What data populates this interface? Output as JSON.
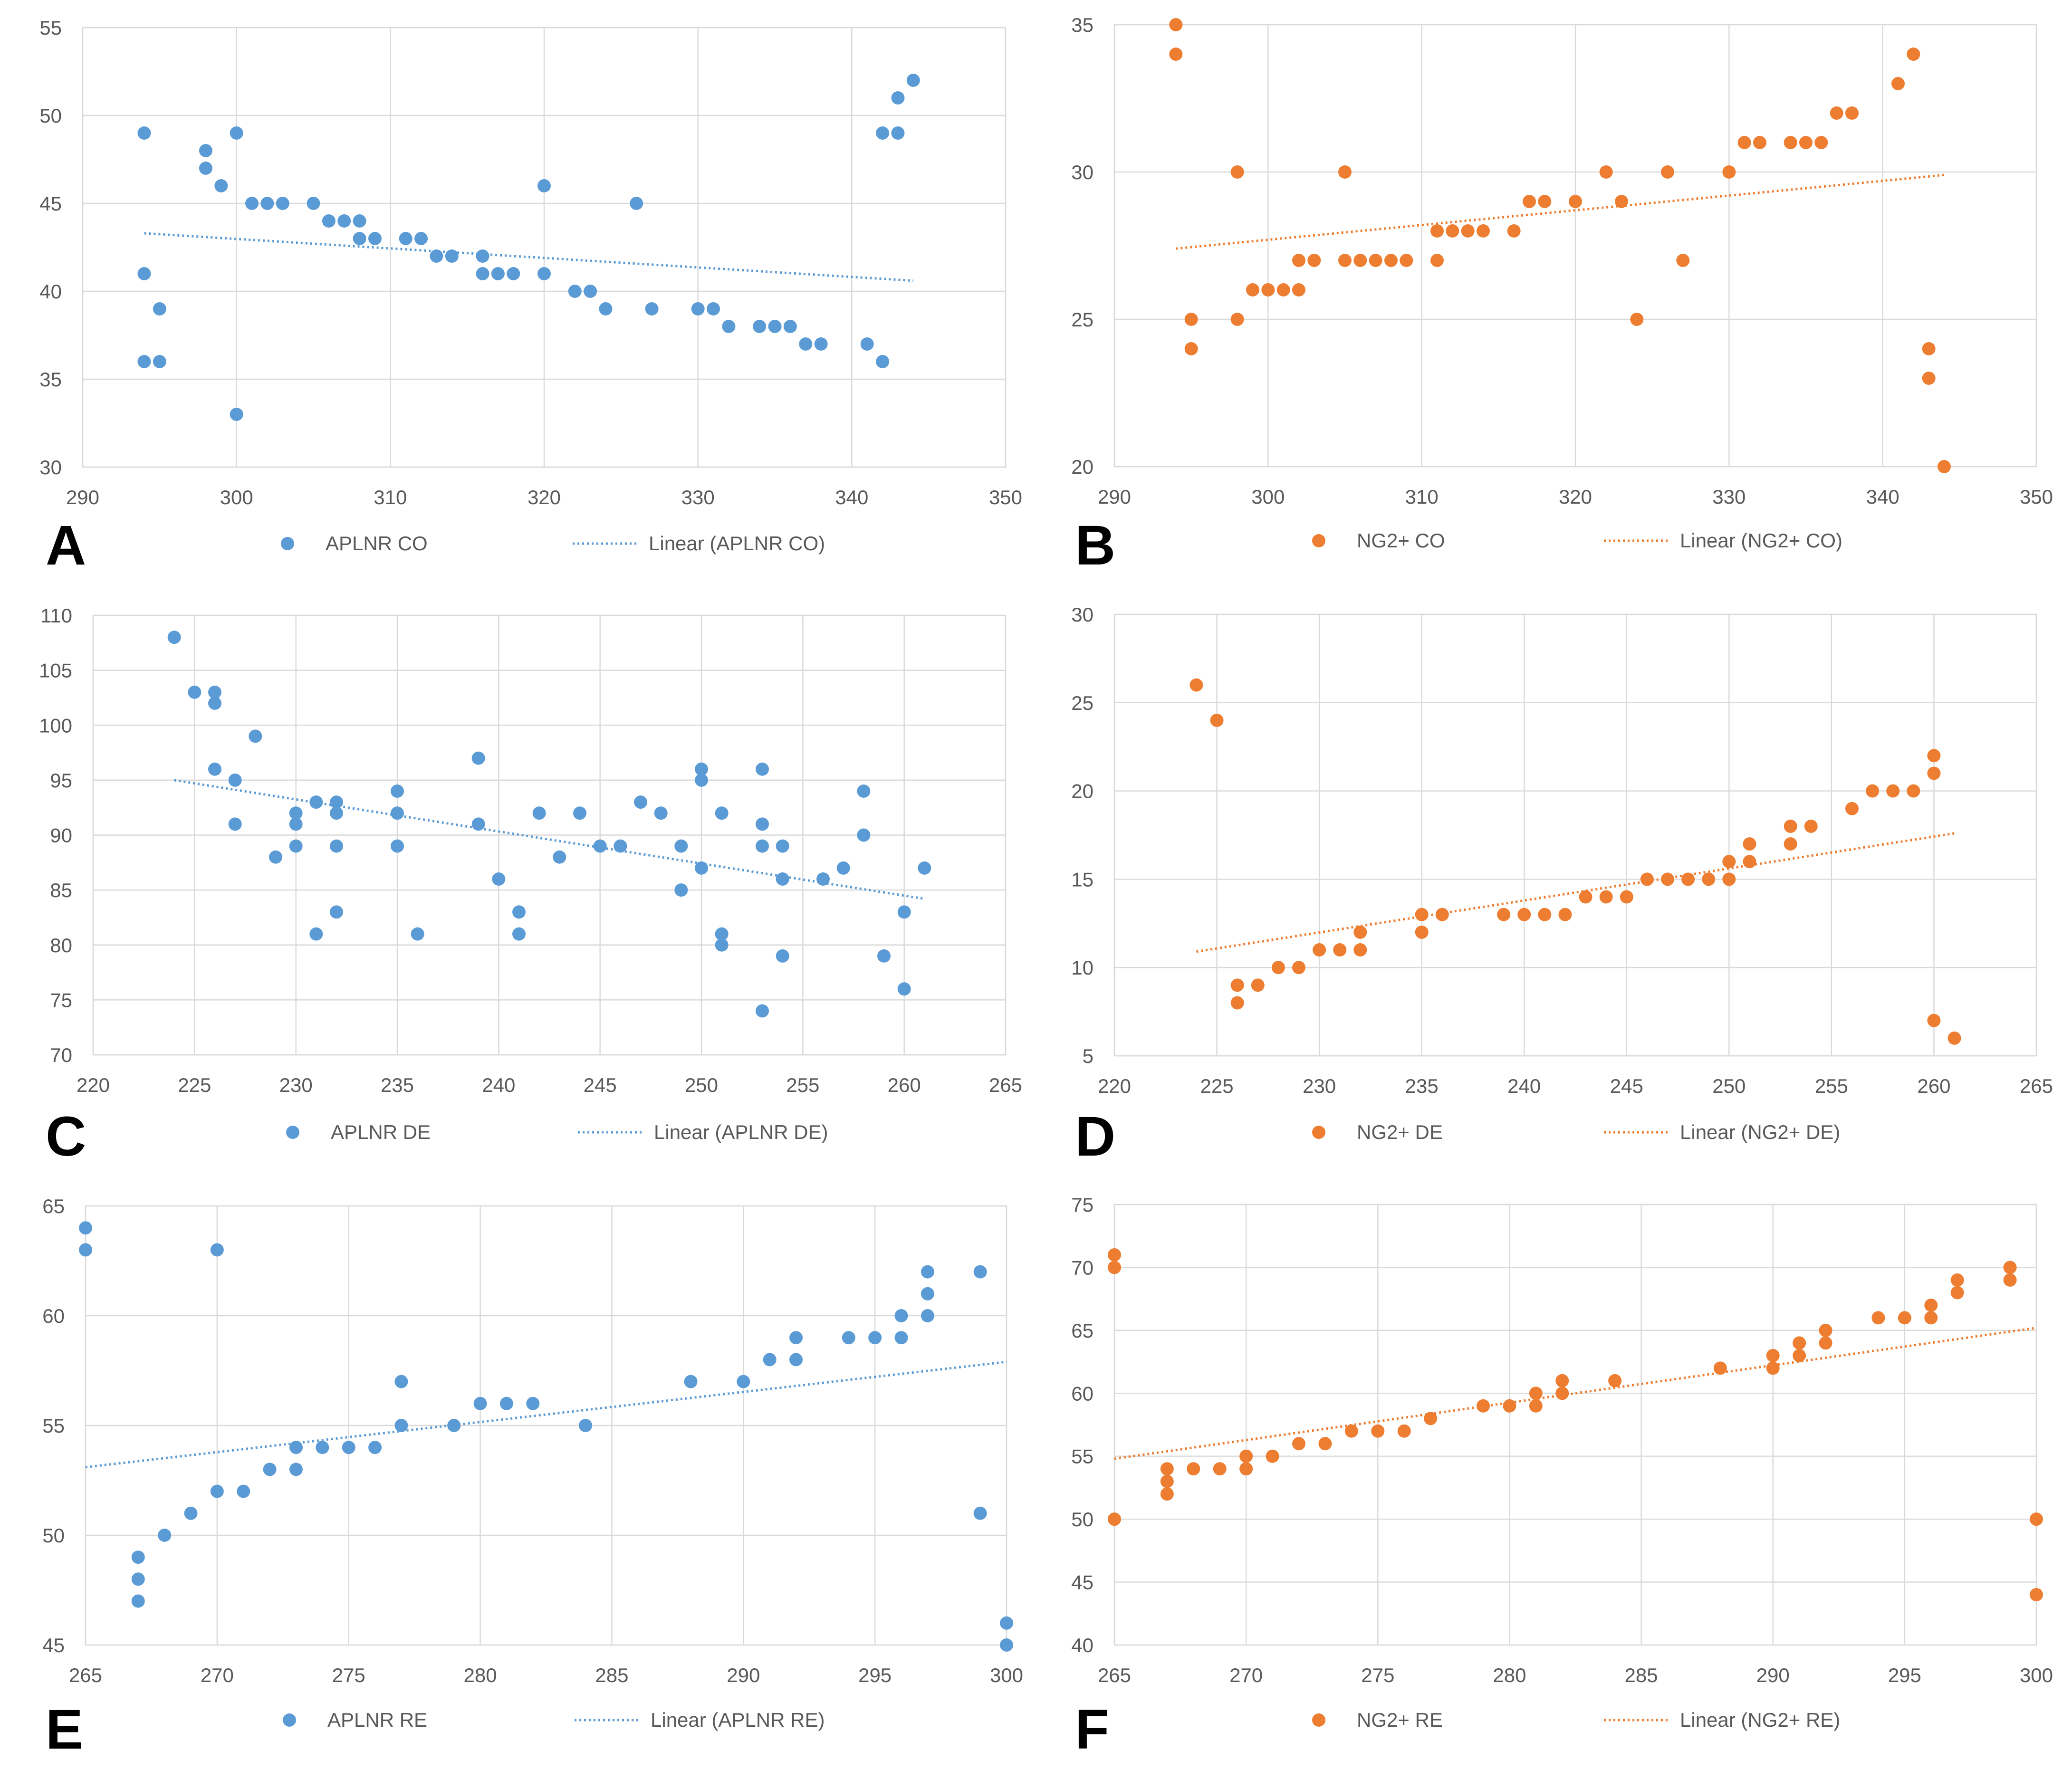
{
  "colors": {
    "blue": "#5b9bd5",
    "orange": "#ed7d31",
    "grid": "#d9d9d9",
    "tick": "#595959"
  },
  "chart_data": [
    {
      "panel": "A",
      "type": "scatter",
      "title": "",
      "xlabel": "",
      "ylabel": "",
      "xlim": [
        290,
        350
      ],
      "ylim": [
        30,
        55
      ],
      "xticks": [
        290,
        300,
        310,
        320,
        330,
        340,
        350
      ],
      "yticks": [
        30,
        35,
        40,
        45,
        50,
        55
      ],
      "color": "#5b9bd5",
      "series_name": "APLNR CO",
      "trend_name": "Linear (APLNR CO)",
      "trend": {
        "x": [
          294,
          344
        ],
        "y": [
          43.3,
          40.6
        ]
      },
      "points": [
        [
          294,
          49
        ],
        [
          294,
          41
        ],
        [
          294,
          36
        ],
        [
          295,
          39
        ],
        [
          295,
          36
        ],
        [
          298,
          48
        ],
        [
          298,
          47
        ],
        [
          299,
          46
        ],
        [
          300,
          49
        ],
        [
          300,
          33
        ],
        [
          301,
          45
        ],
        [
          302,
          45
        ],
        [
          303,
          45
        ],
        [
          305,
          45
        ],
        [
          306,
          44
        ],
        [
          307,
          44
        ],
        [
          308,
          44
        ],
        [
          308,
          43
        ],
        [
          309,
          43
        ],
        [
          311,
          43
        ],
        [
          312,
          43
        ],
        [
          313,
          42
        ],
        [
          314,
          42
        ],
        [
          316,
          42
        ],
        [
          316,
          41
        ],
        [
          317,
          41
        ],
        [
          318,
          41
        ],
        [
          320,
          46
        ],
        [
          320,
          41
        ],
        [
          322,
          40
        ],
        [
          323,
          40
        ],
        [
          324,
          39
        ],
        [
          326,
          45
        ],
        [
          327,
          39
        ],
        [
          330,
          39
        ],
        [
          331,
          39
        ],
        [
          332,
          38
        ],
        [
          334,
          38
        ],
        [
          335,
          38
        ],
        [
          336,
          38
        ],
        [
          337,
          37
        ],
        [
          338,
          37
        ],
        [
          341,
          37
        ],
        [
          342,
          49
        ],
        [
          342,
          36
        ],
        [
          343,
          51
        ],
        [
          343,
          49
        ],
        [
          344,
          52
        ]
      ]
    },
    {
      "panel": "B",
      "type": "scatter",
      "title": "",
      "xlabel": "",
      "ylabel": "",
      "xlim": [
        290,
        350
      ],
      "ylim": [
        20,
        35
      ],
      "xticks": [
        290,
        300,
        310,
        320,
        330,
        340,
        350
      ],
      "yticks": [
        20,
        25,
        30,
        35
      ],
      "color": "#ed7d31",
      "series_name": "NG2+ CO",
      "trend_name": "Linear (NG2+ CO)",
      "trend": {
        "x": [
          294,
          344
        ],
        "y": [
          27.4,
          29.9
        ]
      },
      "points": [
        [
          294,
          35
        ],
        [
          294,
          34
        ],
        [
          295,
          25
        ],
        [
          295,
          24
        ],
        [
          298,
          30
        ],
        [
          298,
          25
        ],
        [
          299,
          26
        ],
        [
          300,
          26
        ],
        [
          301,
          26
        ],
        [
          302,
          26
        ],
        [
          302,
          27
        ],
        [
          303,
          27
        ],
        [
          305,
          30
        ],
        [
          305,
          27
        ],
        [
          306,
          27
        ],
        [
          307,
          27
        ],
        [
          308,
          27
        ],
        [
          309,
          27
        ],
        [
          311,
          28
        ],
        [
          311,
          27
        ],
        [
          312,
          28
        ],
        [
          313,
          28
        ],
        [
          314,
          28
        ],
        [
          316,
          28
        ],
        [
          317,
          29
        ],
        [
          318,
          29
        ],
        [
          320,
          29
        ],
        [
          322,
          30
        ],
        [
          323,
          29
        ],
        [
          324,
          25
        ],
        [
          326,
          30
        ],
        [
          327,
          27
        ],
        [
          330,
          30
        ],
        [
          331,
          31
        ],
        [
          332,
          31
        ],
        [
          334,
          31
        ],
        [
          335,
          31
        ],
        [
          336,
          31
        ],
        [
          337,
          32
        ],
        [
          338,
          32
        ],
        [
          341,
          33
        ],
        [
          342,
          34
        ],
        [
          343,
          24
        ],
        [
          343,
          23
        ],
        [
          344,
          20
        ]
      ]
    },
    {
      "panel": "C",
      "type": "scatter",
      "title": "",
      "xlabel": "",
      "ylabel": "",
      "xlim": [
        220,
        265
      ],
      "ylim": [
        70,
        110
      ],
      "xticks": [
        220,
        225,
        230,
        235,
        240,
        245,
        250,
        255,
        260,
        265
      ],
      "yticks": [
        70,
        75,
        80,
        85,
        90,
        95,
        100,
        105,
        110
      ],
      "color": "#5b9bd5",
      "series_name": "APLNR DE",
      "trend_name": "Linear (APLNR DE)",
      "trend": {
        "x": [
          224,
          261
        ],
        "y": [
          95,
          84.2
        ]
      },
      "points": [
        [
          224,
          108
        ],
        [
          225,
          103
        ],
        [
          226,
          103
        ],
        [
          226,
          102
        ],
        [
          226,
          96
        ],
        [
          227,
          95
        ],
        [
          227,
          91
        ],
        [
          228,
          99
        ],
        [
          229,
          88
        ],
        [
          230,
          92
        ],
        [
          230,
          91
        ],
        [
          230,
          89
        ],
        [
          231,
          93
        ],
        [
          231,
          81
        ],
        [
          232,
          93
        ],
        [
          232,
          92
        ],
        [
          232,
          89
        ],
        [
          232,
          83
        ],
        [
          235,
          94
        ],
        [
          235,
          92
        ],
        [
          235,
          89
        ],
        [
          236,
          81
        ],
        [
          239,
          97
        ],
        [
          239,
          91
        ],
        [
          240,
          86
        ],
        [
          241,
          83
        ],
        [
          241,
          81
        ],
        [
          242,
          92
        ],
        [
          243,
          88
        ],
        [
          244,
          92
        ],
        [
          245,
          89
        ],
        [
          246,
          89
        ],
        [
          247,
          93
        ],
        [
          248,
          92
        ],
        [
          249,
          89
        ],
        [
          249,
          85
        ],
        [
          250,
          96
        ],
        [
          250,
          95
        ],
        [
          250,
          87
        ],
        [
          251,
          92
        ],
        [
          251,
          81
        ],
        [
          251,
          80
        ],
        [
          253,
          96
        ],
        [
          253,
          91
        ],
        [
          253,
          89
        ],
        [
          253,
          74
        ],
        [
          254,
          89
        ],
        [
          254,
          86
        ],
        [
          254,
          79
        ],
        [
          256,
          86
        ],
        [
          257,
          87
        ],
        [
          258,
          94
        ],
        [
          258,
          90
        ],
        [
          259,
          79
        ],
        [
          260,
          83
        ],
        [
          260,
          76
        ],
        [
          261,
          87
        ]
      ]
    },
    {
      "panel": "D",
      "type": "scatter",
      "title": "",
      "xlabel": "",
      "ylabel": "",
      "xlim": [
        220,
        265
      ],
      "ylim": [
        5,
        30
      ],
      "xticks": [
        220,
        225,
        230,
        235,
        240,
        245,
        250,
        255,
        260,
        265
      ],
      "yticks": [
        5,
        10,
        15,
        20,
        25,
        30
      ],
      "color": "#ed7d31",
      "series_name": "NG2+ DE",
      "trend_name": "Linear (NG2+ DE)",
      "trend": {
        "x": [
          224,
          261
        ],
        "y": [
          10.9,
          17.6
        ]
      },
      "points": [
        [
          224,
          26
        ],
        [
          225,
          24
        ],
        [
          226,
          9
        ],
        [
          226,
          8
        ],
        [
          227,
          9
        ],
        [
          228,
          10
        ],
        [
          229,
          10
        ],
        [
          230,
          11
        ],
        [
          231,
          11
        ],
        [
          232,
          12
        ],
        [
          232,
          11
        ],
        [
          235,
          13
        ],
        [
          235,
          12
        ],
        [
          236,
          13
        ],
        [
          239,
          13
        ],
        [
          240,
          13
        ],
        [
          241,
          13
        ],
        [
          242,
          13
        ],
        [
          243,
          14
        ],
        [
          244,
          14
        ],
        [
          245,
          14
        ],
        [
          246,
          15
        ],
        [
          247,
          15
        ],
        [
          248,
          15
        ],
        [
          249,
          15
        ],
        [
          250,
          16
        ],
        [
          250,
          15
        ],
        [
          251,
          17
        ],
        [
          251,
          16
        ],
        [
          253,
          18
        ],
        [
          253,
          17
        ],
        [
          254,
          18
        ],
        [
          256,
          19
        ],
        [
          257,
          20
        ],
        [
          258,
          20
        ],
        [
          259,
          20
        ],
        [
          260,
          22
        ],
        [
          260,
          21
        ],
        [
          260,
          7
        ],
        [
          261,
          6
        ]
      ]
    },
    {
      "panel": "E",
      "type": "scatter",
      "title": "",
      "xlabel": "",
      "ylabel": "",
      "xlim": [
        265,
        300
      ],
      "ylim": [
        45,
        65
      ],
      "xticks": [
        265,
        270,
        275,
        280,
        285,
        290,
        295,
        300
      ],
      "yticks": [
        45,
        50,
        55,
        60,
        65
      ],
      "color": "#5b9bd5",
      "series_name": "APLNR RE",
      "trend_name": "Linear (APLNR RE)",
      "trend": {
        "x": [
          265,
          300
        ],
        "y": [
          53.1,
          57.9
        ]
      },
      "points": [
        [
          265,
          64
        ],
        [
          265,
          63
        ],
        [
          267,
          49
        ],
        [
          267,
          48
        ],
        [
          267,
          47
        ],
        [
          268,
          50
        ],
        [
          269,
          51
        ],
        [
          270,
          63
        ],
        [
          270,
          52
        ],
        [
          271,
          52
        ],
        [
          272,
          53
        ],
        [
          273,
          54
        ],
        [
          273,
          53
        ],
        [
          274,
          54
        ],
        [
          275,
          54
        ],
        [
          276,
          54
        ],
        [
          277,
          57
        ],
        [
          277,
          55
        ],
        [
          279,
          55
        ],
        [
          280,
          56
        ],
        [
          281,
          56
        ],
        [
          282,
          56
        ],
        [
          284,
          55
        ],
        [
          288,
          57
        ],
        [
          290,
          57
        ],
        [
          291,
          58
        ],
        [
          292,
          59
        ],
        [
          292,
          58
        ],
        [
          294,
          59
        ],
        [
          295,
          59
        ],
        [
          296,
          60
        ],
        [
          296,
          59
        ],
        [
          297,
          62
        ],
        [
          297,
          61
        ],
        [
          297,
          60
        ],
        [
          299,
          62
        ],
        [
          299,
          51
        ],
        [
          300,
          46
        ],
        [
          300,
          45
        ]
      ]
    },
    {
      "panel": "F",
      "type": "scatter",
      "title": "",
      "xlabel": "",
      "ylabel": "",
      "xlim": [
        265,
        300
      ],
      "ylim": [
        40,
        75
      ],
      "xticks": [
        265,
        270,
        275,
        280,
        285,
        290,
        295,
        300
      ],
      "yticks": [
        40,
        45,
        50,
        55,
        60,
        65,
        70,
        75
      ],
      "color": "#ed7d31",
      "series_name": "NG2+ RE",
      "trend_name": "Linear (NG2+ RE)",
      "trend": {
        "x": [
          265,
          300
        ],
        "y": [
          54.8,
          65.2
        ]
      },
      "points": [
        [
          265,
          71
        ],
        [
          265,
          70
        ],
        [
          265,
          50
        ],
        [
          267,
          54
        ],
        [
          267,
          53
        ],
        [
          267,
          52
        ],
        [
          268,
          54
        ],
        [
          269,
          54
        ],
        [
          270,
          55
        ],
        [
          270,
          54
        ],
        [
          271,
          55
        ],
        [
          272,
          56
        ],
        [
          273,
          56
        ],
        [
          274,
          57
        ],
        [
          275,
          57
        ],
        [
          276,
          57
        ],
        [
          277,
          58
        ],
        [
          279,
          59
        ],
        [
          280,
          59
        ],
        [
          281,
          60
        ],
        [
          281,
          59
        ],
        [
          282,
          61
        ],
        [
          282,
          60
        ],
        [
          284,
          61
        ],
        [
          288,
          62
        ],
        [
          290,
          63
        ],
        [
          290,
          62
        ],
        [
          291,
          64
        ],
        [
          291,
          63
        ],
        [
          292,
          65
        ],
        [
          292,
          64
        ],
        [
          294,
          66
        ],
        [
          295,
          66
        ],
        [
          296,
          67
        ],
        [
          296,
          66
        ],
        [
          297,
          69
        ],
        [
          297,
          68
        ],
        [
          299,
          70
        ],
        [
          299,
          69
        ],
        [
          300,
          50
        ],
        [
          300,
          44
        ]
      ]
    }
  ]
}
